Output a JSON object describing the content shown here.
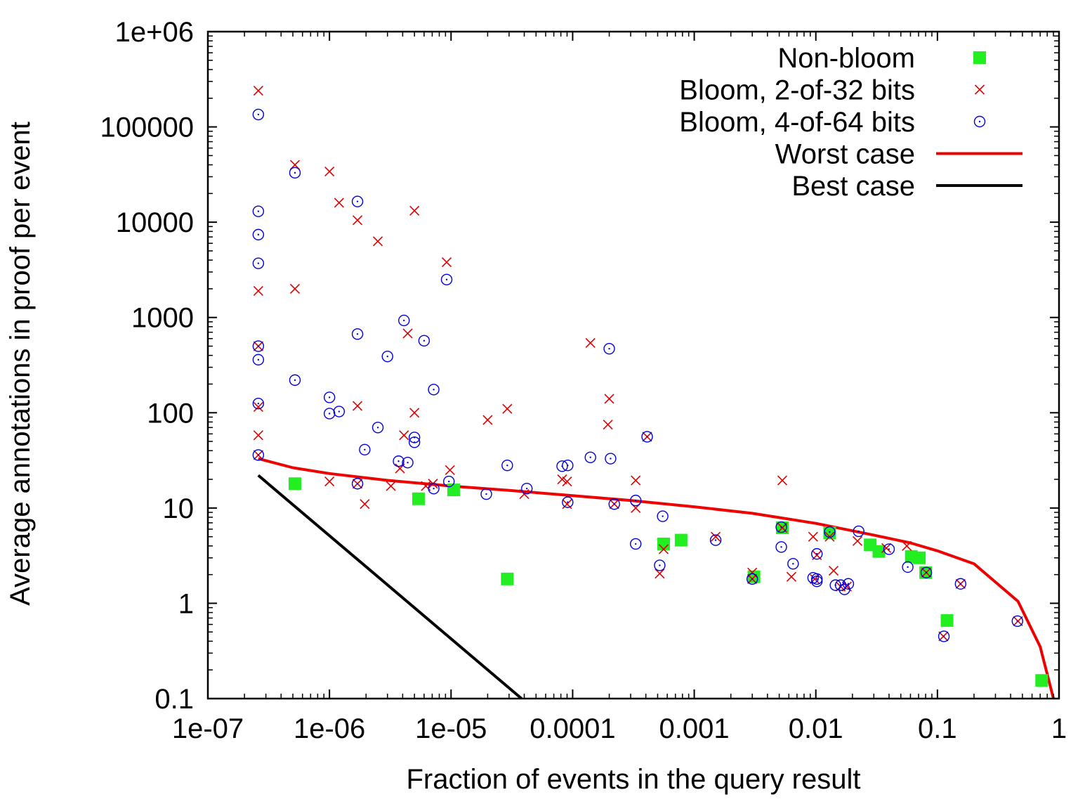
{
  "chart_data": {
    "type": "scatter",
    "xlabel": "Fraction of events in the query result",
    "ylabel": "Average annotations in proof per event",
    "x_scale": "log",
    "y_scale": "log",
    "xlim": [
      1e-07,
      1
    ],
    "ylim": [
      0.1,
      1000000
    ],
    "x_ticks": [
      {
        "value": 1e-07,
        "label": "1e-07"
      },
      {
        "value": 1e-06,
        "label": "1e-06"
      },
      {
        "value": 1e-05,
        "label": "1e-05"
      },
      {
        "value": 0.0001,
        "label": "0.0001"
      },
      {
        "value": 0.001,
        "label": "0.001"
      },
      {
        "value": 0.01,
        "label": "0.01"
      },
      {
        "value": 0.1,
        "label": "0.1"
      },
      {
        "value": 1,
        "label": "1"
      }
    ],
    "y_ticks": [
      {
        "value": 0.1,
        "label": "0.1"
      },
      {
        "value": 1,
        "label": "1"
      },
      {
        "value": 10,
        "label": "10"
      },
      {
        "value": 100,
        "label": "100"
      },
      {
        "value": 1000,
        "label": "1000"
      },
      {
        "value": 10000,
        "label": "10000"
      },
      {
        "value": 100000,
        "label": "100000"
      },
      {
        "value": 1000000,
        "label": "1e+06"
      }
    ],
    "grid": false,
    "legend_position": "top-right",
    "series": [
      {
        "name": "Non-bloom",
        "kind": "points",
        "marker": "square",
        "color": "#22ee22",
        "points": [
          [
            5.2e-07,
            18
          ],
          [
            5.4e-06,
            12.5
          ],
          [
            1.05e-05,
            15.5
          ],
          [
            2.9e-05,
            1.8
          ],
          [
            0.00056,
            4.2
          ],
          [
            0.00078,
            4.6
          ],
          [
            0.0031,
            1.9
          ],
          [
            0.0053,
            6.2
          ],
          [
            0.013,
            5.5
          ],
          [
            0.028,
            4.1
          ],
          [
            0.033,
            3.5
          ],
          [
            0.061,
            3.1
          ],
          [
            0.071,
            3.0
          ],
          [
            0.08,
            2.1
          ],
          [
            0.12,
            0.66
          ],
          [
            0.72,
            0.155
          ]
        ]
      },
      {
        "name": "Bloom, 2-of-32 bits",
        "kind": "points",
        "marker": "cross",
        "color": "#dd0000",
        "points": [
          [
            2.6e-07,
            240000
          ],
          [
            2.6e-07,
            1900
          ],
          [
            2.6e-07,
            500
          ],
          [
            2.6e-07,
            115
          ],
          [
            2.6e-07,
            58
          ],
          [
            2.6e-07,
            36
          ],
          [
            5.2e-07,
            40000
          ],
          [
            5.2e-07,
            2000
          ],
          [
            1e-06,
            34000
          ],
          [
            1e-06,
            19
          ],
          [
            1.2e-06,
            16000
          ],
          [
            1.7e-06,
            10500
          ],
          [
            1.7e-06,
            118
          ],
          [
            1.7e-06,
            18
          ],
          [
            1.95e-06,
            11
          ],
          [
            2.5e-06,
            6300
          ],
          [
            3.2e-06,
            17
          ],
          [
            3.8e-06,
            26
          ],
          [
            4.1e-06,
            58
          ],
          [
            4.4e-06,
            680
          ],
          [
            5e-06,
            13200
          ],
          [
            5e-06,
            100
          ],
          [
            6.2e-06,
            17
          ],
          [
            7.1e-06,
            18
          ],
          [
            9.2e-06,
            3800
          ],
          [
            9.8e-06,
            25
          ],
          [
            2e-05,
            84
          ],
          [
            2.9e-05,
            110
          ],
          [
            4e-05,
            14
          ],
          [
            8.2e-05,
            20
          ],
          [
            9e-05,
            19
          ],
          [
            9e-05,
            11
          ],
          [
            0.00014,
            540
          ],
          [
            0.0002,
            140
          ],
          [
            0.000195,
            75
          ],
          [
            0.00022,
            11
          ],
          [
            0.00033,
            19.5
          ],
          [
            0.00033,
            10
          ],
          [
            0.00041,
            56
          ],
          [
            0.00052,
            2.05
          ],
          [
            0.00056,
            3.7
          ],
          [
            0.0015,
            5.0
          ],
          [
            0.003,
            2.1
          ],
          [
            0.003,
            1.8
          ],
          [
            0.0053,
            19.5
          ],
          [
            0.0053,
            6.2
          ],
          [
            0.0063,
            1.9
          ],
          [
            0.0095,
            5.0
          ],
          [
            0.0098,
            1.8
          ],
          [
            0.0102,
            3.2
          ],
          [
            0.013,
            5.0
          ],
          [
            0.014,
            2.2
          ],
          [
            0.016,
            1.5
          ],
          [
            0.018,
            1.5
          ],
          [
            0.022,
            4.5
          ],
          [
            0.038,
            3.8
          ],
          [
            0.056,
            4.0
          ],
          [
            0.081,
            2.1
          ],
          [
            0.112,
            0.45
          ],
          [
            0.155,
            1.6
          ],
          [
            0.46,
            0.65
          ]
        ]
      },
      {
        "name": "Bloom, 4-of-64 bits",
        "kind": "points",
        "marker": "circle",
        "color": "#0000dd",
        "points": [
          [
            2.6e-07,
            135000
          ],
          [
            2.6e-07,
            13000
          ],
          [
            2.6e-07,
            7400
          ],
          [
            2.6e-07,
            3700
          ],
          [
            2.6e-07,
            500
          ],
          [
            2.6e-07,
            360
          ],
          [
            2.6e-07,
            125
          ],
          [
            2.6e-07,
            36
          ],
          [
            5.2e-07,
            33000
          ],
          [
            5.2e-07,
            220
          ],
          [
            1e-06,
            145
          ],
          [
            1e-06,
            98
          ],
          [
            1.2e-06,
            103
          ],
          [
            1.7e-06,
            16500
          ],
          [
            1.7e-06,
            670
          ],
          [
            1.7e-06,
            18
          ],
          [
            1.95e-06,
            41
          ],
          [
            2.5e-06,
            70
          ],
          [
            3e-06,
            390
          ],
          [
            3.7e-06,
            31
          ],
          [
            4.1e-06,
            930
          ],
          [
            4.4e-06,
            30
          ],
          [
            5e-06,
            55
          ],
          [
            5e-06,
            49
          ],
          [
            6e-06,
            570
          ],
          [
            7.2e-06,
            175
          ],
          [
            7.2e-06,
            16
          ],
          [
            9.2e-06,
            2500
          ],
          [
            9.6e-06,
            19
          ],
          [
            1.95e-05,
            14
          ],
          [
            2.9e-05,
            28
          ],
          [
            4.2e-05,
            16
          ],
          [
            8.2e-05,
            27.5
          ],
          [
            9.1e-05,
            28
          ],
          [
            9.1e-05,
            11.5
          ],
          [
            0.00014,
            34
          ],
          [
            0.0002,
            470
          ],
          [
            0.000205,
            33
          ],
          [
            0.00022,
            11
          ],
          [
            0.00033,
            12
          ],
          [
            0.00033,
            4.2
          ],
          [
            0.00041,
            56
          ],
          [
            0.00052,
            2.5
          ],
          [
            0.00055,
            8.2
          ],
          [
            0.0015,
            4.6
          ],
          [
            0.003,
            1.8
          ],
          [
            0.0052,
            6.3
          ],
          [
            0.0052,
            3.9
          ],
          [
            0.0065,
            2.6
          ],
          [
            0.0095,
            1.85
          ],
          [
            0.0102,
            3.3
          ],
          [
            0.0102,
            1.8
          ],
          [
            0.0102,
            1.7
          ],
          [
            0.013,
            5.6
          ],
          [
            0.0145,
            1.55
          ],
          [
            0.016,
            1.55
          ],
          [
            0.0172,
            1.4
          ],
          [
            0.0185,
            1.6
          ],
          [
            0.0225,
            5.7
          ],
          [
            0.04,
            3.7
          ],
          [
            0.057,
            2.4
          ],
          [
            0.081,
            2.1
          ],
          [
            0.113,
            0.45
          ],
          [
            0.155,
            1.6
          ],
          [
            0.455,
            0.65
          ]
        ]
      },
      {
        "name": "Worst case",
        "kind": "line",
        "color": "#ee0000",
        "points": [
          [
            2.6e-07,
            33
          ],
          [
            5e-07,
            26.5
          ],
          [
            1e-06,
            23
          ],
          [
            3e-06,
            19.5
          ],
          [
            1e-05,
            17
          ],
          [
            3e-05,
            15.3
          ],
          [
            0.0001,
            13.5
          ],
          [
            0.0003,
            12.0
          ],
          [
            0.001,
            10.3
          ],
          [
            0.003,
            8.8
          ],
          [
            0.01,
            6.9
          ],
          [
            0.03,
            5.2
          ],
          [
            0.06,
            4.3
          ],
          [
            0.1,
            3.55
          ],
          [
            0.2,
            2.6
          ],
          [
            0.46,
            1.05
          ],
          [
            0.7,
            0.35
          ],
          [
            0.9,
            0.1
          ]
        ]
      },
      {
        "name": "Best case",
        "kind": "line",
        "color": "#000000",
        "points": [
          [
            2.6e-07,
            22
          ],
          [
            3.8e-05,
            0.1
          ]
        ]
      }
    ]
  }
}
